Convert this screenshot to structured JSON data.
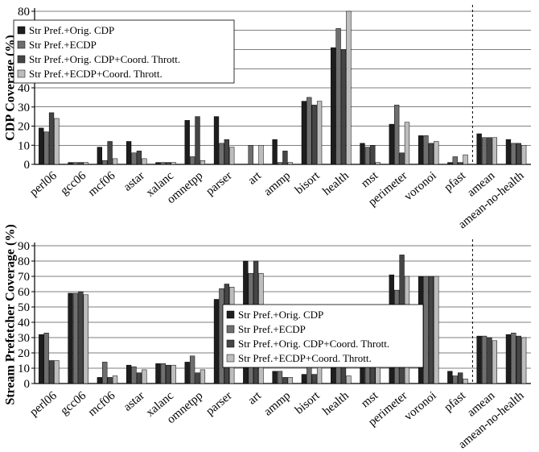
{
  "colors": {
    "series": [
      "#1e1e1e",
      "#6f6f6f",
      "#454545",
      "#bdbdbd"
    ],
    "axis": "#000000",
    "grid": "#000000"
  },
  "chart_data": [
    {
      "type": "bar",
      "ylabel": "CDP Coverage (%)",
      "ylim": [
        0,
        80
      ],
      "yticks": [
        0,
        10,
        20,
        30,
        40,
        50,
        60,
        70,
        80
      ],
      "grid": true,
      "legend_position": "top-left",
      "separator_after_category": "pfast",
      "categories": [
        "perl06",
        "gcc06",
        "mcf06",
        "astar",
        "xalanc",
        "omnetpp",
        "parser",
        "art",
        "ammp",
        "bisort",
        "health",
        "mst",
        "perimeter",
        "voronoi",
        "pfast",
        "amean",
        "amean-no-health"
      ],
      "series": [
        {
          "name": "Str Pref.+Orig. CDP",
          "values": [
            19,
            1,
            9,
            12,
            1,
            23,
            25,
            0,
            13,
            33,
            61,
            11,
            21,
            15,
            1,
            16,
            13
          ]
        },
        {
          "name": "Str Pref.+ECDP",
          "values": [
            17,
            1,
            2,
            6,
            1,
            4,
            11,
            10,
            1,
            35,
            71,
            9,
            31,
            15,
            4,
            14,
            11
          ]
        },
        {
          "name": "Str Pref.+Orig. CDP+Coord. Thrott.",
          "values": [
            27,
            1,
            12,
            7,
            1,
            25,
            13,
            0,
            7,
            31,
            60,
            10,
            6,
            11,
            1,
            14,
            11
          ]
        },
        {
          "name": "Str Pref.+ECDP+Coord. Thrott.",
          "values": [
            24,
            1,
            3,
            3,
            1,
            2,
            9,
            10,
            1,
            33,
            80,
            1,
            22,
            12,
            5,
            14,
            10
          ]
        }
      ]
    },
    {
      "type": "bar",
      "ylabel": "Stream Prefetcher Coverage (%)",
      "ylim": [
        0,
        90
      ],
      "yticks": [
        0,
        10,
        20,
        30,
        40,
        50,
        60,
        70,
        80,
        90
      ],
      "grid": true,
      "legend_position": "center",
      "separator_after_category": "pfast",
      "categories": [
        "perl06",
        "gcc06",
        "mcf06",
        "astar",
        "xalanc",
        "omnetpp",
        "parser",
        "art",
        "ammp",
        "bisort",
        "health",
        "mst",
        "perimeter",
        "voronoi",
        "pfast",
        "amean",
        "amean-no-health"
      ],
      "series": [
        {
          "name": "Str Pref.+Orig. CDP",
          "values": [
            32,
            59,
            4,
            12,
            13,
            14,
            55,
            80,
            8,
            6,
            22,
            18,
            71,
            70,
            8,
            31,
            32
          ]
        },
        {
          "name": "Str Pref.+ECDP",
          "values": [
            33,
            59,
            14,
            11,
            13,
            18,
            62,
            72,
            8,
            14,
            11,
            20,
            61,
            70,
            5,
            31,
            33
          ]
        },
        {
          "name": "Str Pref.+Orig. CDP+Coord. Thrott.",
          "values": [
            15,
            60,
            4,
            7,
            12,
            7,
            65,
            80,
            4,
            6,
            21,
            20,
            84,
            70,
            7,
            30,
            31
          ]
        },
        {
          "name": "Str Pref.+ECDP+Coord. Thrott.",
          "values": [
            15,
            58,
            5,
            9,
            12,
            9,
            63,
            72,
            4,
            12,
            5,
            16,
            70,
            70,
            3,
            28,
            30
          ]
        }
      ]
    }
  ]
}
